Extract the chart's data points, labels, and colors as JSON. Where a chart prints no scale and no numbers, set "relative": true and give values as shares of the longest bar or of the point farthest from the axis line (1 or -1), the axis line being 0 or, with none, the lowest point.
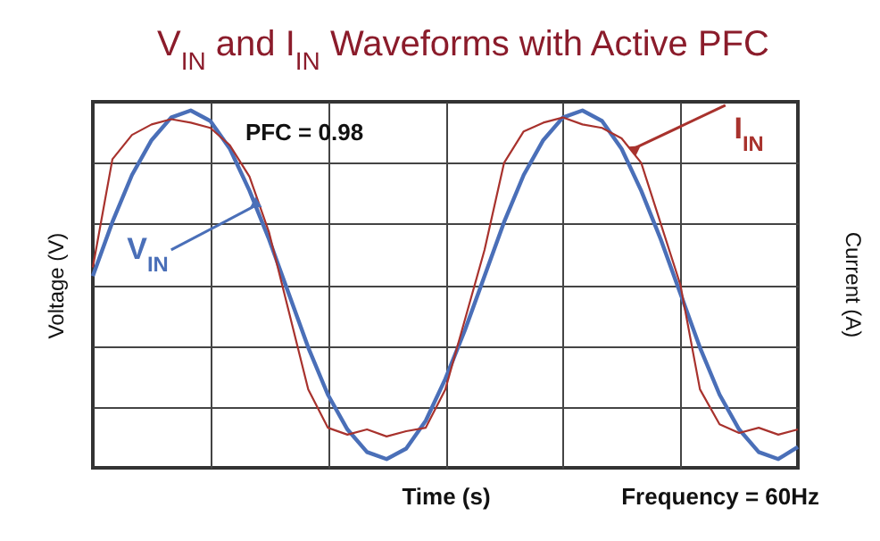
{
  "chart_data": {
    "type": "line",
    "title": "V$_{IN}$ and I$_{IN}$ Waveforms with Active PFC",
    "xlabel": "Time (s)",
    "ylabel": "Voltage (V)",
    "y2label": "Current (A)",
    "annotations": [
      "PFC = 0.98",
      "Frequency = 60Hz"
    ],
    "relative": true,
    "grid": true,
    "categories": [
      null,
      null,
      null,
      null,
      null,
      null,
      null,
      null,
      null,
      null,
      null,
      null,
      null,
      null,
      null,
      null,
      null,
      null,
      null,
      null,
      null,
      null,
      null,
      null,
      null,
      null,
      null,
      null,
      null,
      null,
      null,
      null,
      null,
      null,
      null,
      null,
      null
    ],
    "series": [
      {
        "name": "V$_{IN}$",
        "color": "#4a6fb8",
        "values": [
          0.05,
          0.36,
          0.63,
          0.83,
          0.96,
          1.0,
          0.94,
          0.78,
          0.54,
          0.26,
          -0.05,
          -0.36,
          -0.63,
          -0.83,
          -0.96,
          -1.0,
          -0.94,
          -0.78,
          -0.54,
          -0.26,
          0.05,
          0.36,
          0.63,
          0.83,
          0.96,
          1.0,
          0.94,
          0.78,
          0.54,
          0.26,
          -0.05,
          -0.36,
          -0.63,
          -0.83,
          -0.96,
          -1.0,
          -0.93
        ]
      },
      {
        "name": "I$_{IN}$",
        "color": "#a8322d",
        "values": [
          0.1,
          0.72,
          0.86,
          0.92,
          0.95,
          0.93,
          0.9,
          0.8,
          0.62,
          0.3,
          -0.15,
          -0.6,
          -0.82,
          -0.86,
          -0.83,
          -0.87,
          -0.84,
          -0.82,
          -0.6,
          -0.2,
          0.2,
          0.7,
          0.88,
          0.93,
          0.96,
          0.92,
          0.9,
          0.84,
          0.7,
          0.35,
          0.0,
          -0.6,
          -0.8,
          -0.85,
          -0.82,
          -0.86,
          -0.83
        ]
      }
    ]
  }
}
